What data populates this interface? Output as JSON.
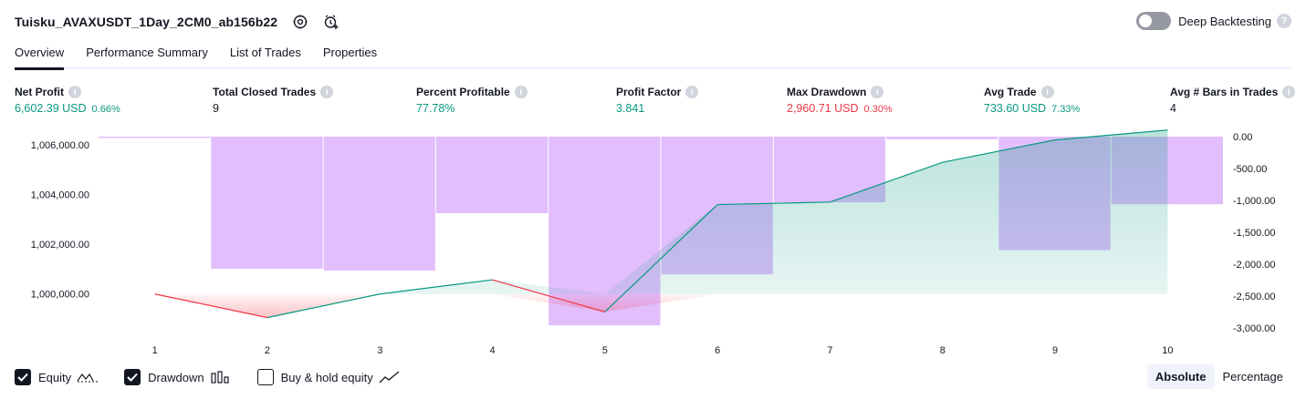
{
  "header": {
    "title": "Tuisku_AVAXUSDT_1Day_2CM0_ab156b22",
    "deep_backtesting_label": "Deep Backtesting",
    "deep_backtesting_on": false,
    "help_glyph": "?"
  },
  "tabs": [
    {
      "label": "Overview",
      "active": true
    },
    {
      "label": "Performance Summary",
      "active": false
    },
    {
      "label": "List of Trades",
      "active": false
    },
    {
      "label": "Properties",
      "active": false
    }
  ],
  "info_glyph": "i",
  "metrics": [
    {
      "label": "Net Profit",
      "value": "6,602.39 USD",
      "pct": "0.66%",
      "color": "green"
    },
    {
      "label": "Total Closed Trades",
      "value": "9",
      "pct": "",
      "color": "dark"
    },
    {
      "label": "Percent Profitable",
      "value": "77.78%",
      "pct": "",
      "color": "green"
    },
    {
      "label": "Profit Factor",
      "value": "3.841",
      "pct": "",
      "color": "green"
    },
    {
      "label": "Max Drawdown",
      "value": "2,960.71 USD",
      "pct": "0.30%",
      "color": "red"
    },
    {
      "label": "Avg Trade",
      "value": "733.60 USD",
      "pct": "7.33%",
      "color": "green"
    },
    {
      "label": "Avg # Bars in Trades",
      "value": "4",
      "pct": "",
      "color": "dark"
    }
  ],
  "colors": {
    "equity_up": "#089981",
    "equity_down": "#f23645",
    "drawdown": "#ce93fb",
    "accent_text": "#131722"
  },
  "chart_data": {
    "type": "line",
    "x": [
      1,
      2,
      3,
      4,
      5,
      6,
      7,
      8,
      9,
      10
    ],
    "series": [
      {
        "values": [
          1000000,
          999050,
          1000000,
          1000570,
          999280,
          1003600,
          1003700,
          1005300,
          1006200,
          1006600
        ]
      }
    ],
    "drawdown_series": {
      "type": "bar",
      "values": [
        0,
        -2070,
        -2100,
        -1200,
        -2960,
        -2160,
        -1030,
        -40,
        -1780,
        -1060
      ]
    },
    "left_axis": {
      "ticks": [
        "1,006,000.00",
        "1,004,000.00",
        "1,002,000.00",
        "1,000,000.00"
      ],
      "ylim": [
        999000,
        1006700
      ]
    },
    "right_axis": {
      "ticks": [
        "0.00",
        "-500.00",
        "-1,000.00",
        "-1,500.00",
        "-2,000.00",
        "-2,500.00",
        "-3,000.00"
      ],
      "ylim": [
        -3000,
        0
      ]
    },
    "x_ticks": [
      "1",
      "2",
      "3",
      "4",
      "5",
      "6",
      "7",
      "8",
      "9",
      "10"
    ],
    "grid": false
  },
  "legend": {
    "items": [
      {
        "label": "Equity",
        "checked": true,
        "icon": "equity-line-icon"
      },
      {
        "label": "Drawdown",
        "checked": true,
        "icon": "drawdown-bars-icon"
      },
      {
        "label": "Buy & hold equity",
        "checked": false,
        "icon": "buy-hold-line-icon"
      }
    ]
  },
  "view_mode": {
    "options": [
      "Absolute",
      "Percentage"
    ],
    "selected": "Absolute"
  }
}
